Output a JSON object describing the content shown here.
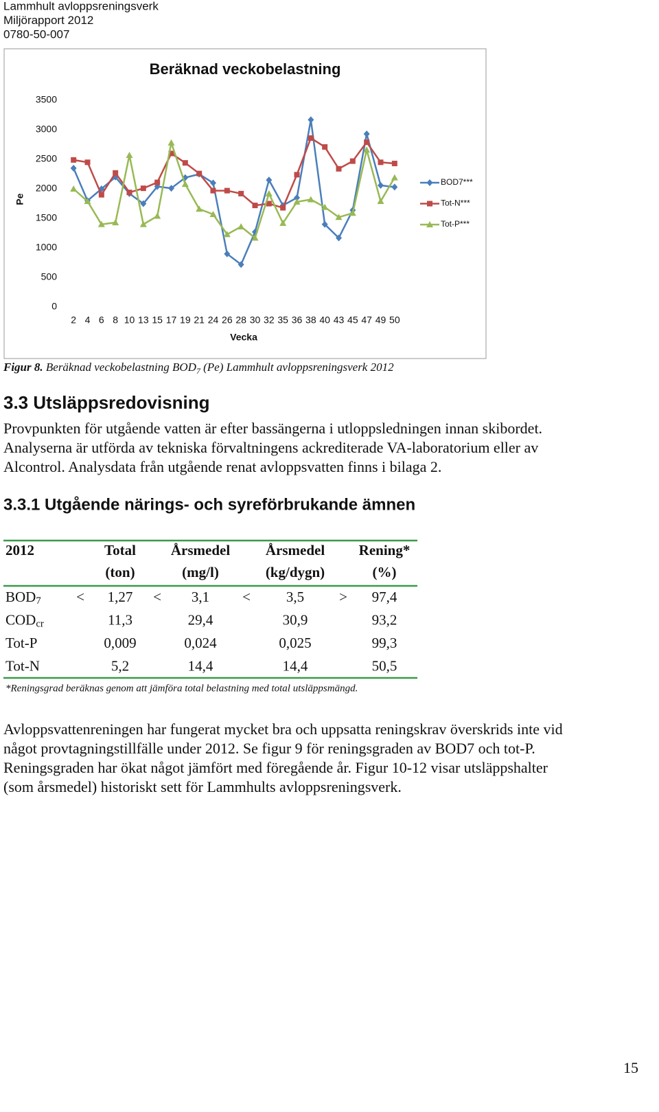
{
  "header": {
    "lines": [
      "Lammhult avloppsreningsverk",
      "Miljörapport 2012",
      "0780-50-007"
    ]
  },
  "chart_data": {
    "type": "line",
    "title": "Beräknad veckobelastning",
    "y_label": "Pe",
    "x_label": "Vecka",
    "categories": [
      "2",
      "4",
      "6",
      "8",
      "10",
      "13",
      "15",
      "17",
      "19",
      "21",
      "24",
      "26",
      "28",
      "30",
      "32",
      "35",
      "36",
      "38",
      "40",
      "43",
      "45",
      "47",
      "49",
      "50"
    ],
    "series": [
      {
        "name": "BOD7***",
        "color": "#4a7ebb",
        "marker": "diamond",
        "values": [
          2350,
          1800,
          2000,
          2200,
          1920,
          1750,
          2040,
          2010,
          2190,
          2250,
          2100,
          900,
          720,
          1270,
          2150,
          1720,
          1850,
          3170,
          1400,
          1170,
          1640,
          2930,
          2060,
          2030
        ]
      },
      {
        "name": "Tot-N***",
        "color": "#be4b48",
        "marker": "square",
        "values": [
          2490,
          2450,
          1900,
          2270,
          1940,
          2010,
          2110,
          2600,
          2440,
          2260,
          1970,
          1970,
          1920,
          1720,
          1750,
          1680,
          2240,
          2860,
          2710,
          2340,
          2470,
          2790,
          2450,
          2430
        ]
      },
      {
        "name": "Tot-P***",
        "color": "#98b954",
        "marker": "triangle",
        "values": [
          2000,
          1790,
          1400,
          1430,
          2570,
          1400,
          1540,
          2780,
          2080,
          1660,
          1570,
          1230,
          1360,
          1170,
          1920,
          1420,
          1780,
          1820,
          1690,
          1520,
          1590,
          2660,
          1790,
          2190
        ]
      }
    ],
    "ylim": [
      0,
      3500
    ],
    "yticks": [
      0,
      500,
      1000,
      1500,
      2000,
      2500,
      3000,
      3500
    ],
    "grid": false,
    "legend": "right"
  },
  "caption": {
    "lead": "Figur 8.",
    "before": " Beräknad veckobelastning BOD",
    "sub": "7",
    "after": " (Pe) Lammhult avloppsreningsverk 2012"
  },
  "section": {
    "heading": "3.3 Utsläppsredovisning",
    "lines": [
      "Provpunkten för utgående vatten är efter bassängerna i utloppsledningen innan skibordet.",
      "Analyserna är utförda av tekniska förvaltningens ackrediterade VA-laboratorium eller av",
      "Alcontrol. Analysdata från utgående renat avloppsvatten finns i bilaga 2."
    ]
  },
  "subsection": {
    "heading": "3.3.1 Utgående närings- och syreförbrukande ämnen"
  },
  "table": {
    "header": [
      "2012",
      "Total",
      "Årsmedel",
      "Årsmedel",
      "Rening*"
    ],
    "units": [
      "(ton)",
      "(mg/l)",
      "(kg/dygn)",
      "(%)"
    ],
    "rows": [
      {
        "name": "BOD",
        "sub": "7",
        "signs": [
          "<",
          "<",
          "<",
          ">"
        ],
        "values": [
          "1,27",
          "3,1",
          "3,5",
          "97,4"
        ]
      },
      {
        "name": "COD",
        "sub": "cr",
        "values": [
          "11,3",
          "29,4",
          "30,9",
          "93,2"
        ]
      },
      {
        "name": "Tot-P",
        "values": [
          "0,009",
          "0,024",
          "0,025",
          "99,3"
        ]
      },
      {
        "name": "Tot-N",
        "values": [
          "5,2",
          "14,4",
          "14,4",
          "50,5"
        ]
      }
    ],
    "footnote": "*Reningsgrad beräknas genom att jämföra total belastning med total utsläppsmängd."
  },
  "conclusion": {
    "lines": [
      "Avloppsvattenreningen har fungerat mycket bra och uppsatta reningskrav överskrids inte vid",
      "något provtagningstillfälle under 2012. Se figur 9 för reningsgraden av BOD7 och tot-P.",
      "Reningsgraden har ökat något jämfört med föregående år. Figur 10-12 visar utsläppshalter",
      "(som årsmedel) historiskt sett för Lammhults avloppsreningsverk."
    ]
  },
  "page_number": "15"
}
